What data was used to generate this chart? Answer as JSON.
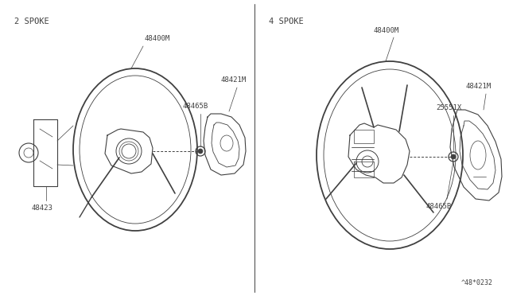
{
  "bg_color": "#ffffff",
  "line_color": "#404040",
  "title_2spoke": "2 SPOKE",
  "title_4spoke": "4 SPOKE",
  "footer_text": "^48*0232",
  "font_size_label": 6.5,
  "font_size_title": 7.5,
  "fig_w": 6.4,
  "fig_h": 3.72,
  "dpi": 100
}
